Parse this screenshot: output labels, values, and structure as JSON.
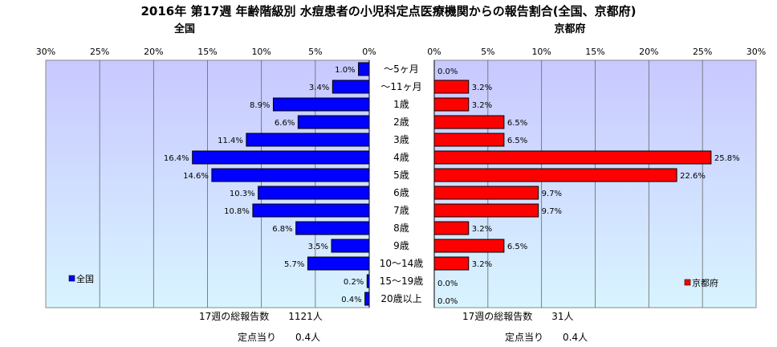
{
  "chart_data": {
    "type": "bar",
    "title": "2016年 第17週 年齢階級別 水痘患者の小児科定点医療機関からの報告割合(全国、京都府)",
    "categories": [
      "～5ヶ月",
      "～11ヶ月",
      "1歳",
      "2歳",
      "3歳",
      "4歳",
      "5歳",
      "6歳",
      "7歳",
      "8歳",
      "9歳",
      "10～14歳",
      "15～19歳",
      "20歳以上"
    ],
    "x_ticks": [
      "30%",
      "25%",
      "20%",
      "15%",
      "10%",
      "5%",
      "0%"
    ],
    "x_ticks_right": [
      "0%",
      "5%",
      "10%",
      "15%",
      "20%",
      "25%",
      "30%"
    ],
    "xlim": [
      0,
      30
    ],
    "grid": true,
    "series": [
      {
        "name": "全国",
        "panel_title": "全国",
        "color": "#0000ff",
        "legend_position": "bottom-left",
        "values": [
          1.0,
          3.4,
          8.9,
          6.6,
          11.4,
          16.4,
          14.6,
          10.3,
          10.8,
          6.8,
          3.5,
          5.7,
          0.2,
          0.4
        ],
        "labels": [
          "1.0%",
          "3.4%",
          "8.9%",
          "6.6%",
          "11.4%",
          "16.4%",
          "14.6%",
          "10.3%",
          "10.8%",
          "6.8%",
          "3.5%",
          "5.7%",
          "0.2%",
          "0.4%"
        ],
        "total_text": "17週の総報告数　　1121人",
        "per_site_text": "定点当り　　0.4人"
      },
      {
        "name": "京都府",
        "panel_title": "京都府",
        "color": "#ff0000",
        "legend_position": "bottom-right",
        "values": [
          0.0,
          3.2,
          3.2,
          6.5,
          6.5,
          25.8,
          22.6,
          9.7,
          9.7,
          3.2,
          6.5,
          3.2,
          0.0,
          0.0
        ],
        "labels": [
          "0.0%",
          "3.2%",
          "3.2%",
          "6.5%",
          "6.5%",
          "25.8%",
          "22.6%",
          "9.7%",
          "9.7%",
          "3.2%",
          "6.5%",
          "3.2%",
          "0.0%",
          "0.0%"
        ],
        "total_text": "17週の総報告数　　31人",
        "per_site_text": "定点当り　　0.4人"
      }
    ]
  }
}
